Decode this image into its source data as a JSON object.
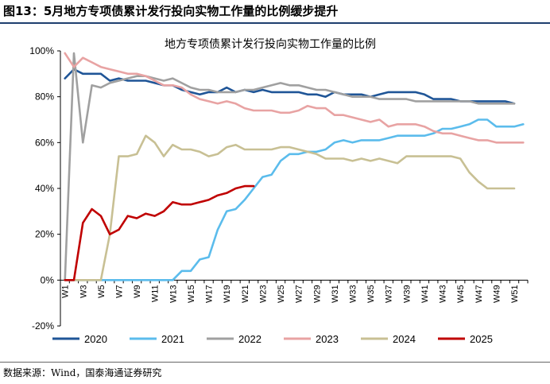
{
  "figure": {
    "title": "图13：5月地方专项债累计发行投向实物工作量的比例缓步提升",
    "source": "数据来源：Wind，国泰海通证券研究"
  },
  "chart_data": {
    "type": "line",
    "title": "地方专项债累计发行投向实物工作量的比例",
    "xlabel": "",
    "ylabel": "",
    "ylim": [
      -20,
      100
    ],
    "yticks": [
      "100%",
      "80%",
      "60%",
      "40%",
      "20%",
      "0%",
      "-20%"
    ],
    "ytick_values": [
      100,
      80,
      60,
      40,
      20,
      0,
      -20
    ],
    "x_categories": [
      "W1",
      "W2",
      "W3",
      "W4",
      "W5",
      "W6",
      "W7",
      "W8",
      "W9",
      "W10",
      "W11",
      "W12",
      "W13",
      "W14",
      "W15",
      "W16",
      "W17",
      "W18",
      "W19",
      "W20",
      "W21",
      "W22",
      "W23",
      "W24",
      "W25",
      "W26",
      "W27",
      "W28",
      "W29",
      "W30",
      "W31",
      "W32",
      "W33",
      "W34",
      "W35",
      "W36",
      "W37",
      "W38",
      "W39",
      "W40",
      "W41",
      "W42",
      "W43",
      "W44",
      "W45",
      "W46",
      "W47",
      "W48",
      "W49",
      "W50",
      "W51",
      "W52"
    ],
    "x_tick_labels": [
      "W1",
      "W3",
      "W5",
      "W7",
      "W9",
      "W11",
      "W13",
      "W15",
      "W17",
      "W19",
      "W21",
      "W23",
      "W25",
      "W27",
      "W29",
      "W31",
      "W33",
      "W35",
      "W37",
      "W39",
      "W41",
      "W43",
      "W45",
      "W47",
      "W49",
      "W51"
    ],
    "grid": false,
    "legend_position": "bottom",
    "series": [
      {
        "name": "2020",
        "color": "#1f5597",
        "values": [
          88,
          92,
          90,
          90,
          90,
          87,
          88,
          87,
          87,
          87,
          86,
          85,
          85,
          83,
          82,
          81,
          82,
          82,
          84,
          82,
          83,
          82,
          83,
          82,
          82,
          82,
          82,
          81,
          81,
          80,
          82,
          81,
          81,
          81,
          80,
          81,
          82,
          82,
          82,
          82,
          81,
          79,
          79,
          79,
          78,
          78,
          78,
          78,
          78,
          78,
          77
        ]
      },
      {
        "name": "2021",
        "color": "#5bbcec",
        "values": [
          0,
          0,
          0,
          0,
          0,
          0,
          0,
          0,
          0,
          0,
          0,
          0,
          0,
          4,
          4,
          9,
          10,
          22,
          30,
          31,
          35,
          40,
          45,
          46,
          52,
          55,
          55,
          56,
          56,
          57,
          60,
          61,
          60,
          61,
          61,
          61,
          62,
          63,
          63,
          63,
          63,
          64,
          66,
          66,
          67,
          68,
          70,
          70,
          67,
          67,
          67,
          68
        ]
      },
      {
        "name": "2022",
        "color": "#a0a0a0",
        "values": [
          0,
          99,
          60,
          85,
          84,
          86,
          87,
          88,
          89,
          89,
          88,
          87,
          88,
          86,
          84,
          83,
          83,
          82,
          82,
          82,
          83,
          83,
          84,
          85,
          86,
          85,
          85,
          84,
          83,
          83,
          82,
          81,
          80,
          80,
          80,
          79,
          79,
          79,
          79,
          78,
          78,
          78,
          78,
          78,
          78,
          78,
          77,
          77,
          77,
          77,
          77
        ]
      },
      {
        "name": "2023",
        "color": "#e8a3a3",
        "values": [
          99,
          93,
          97,
          95,
          93,
          92,
          91,
          90,
          90,
          89,
          87,
          85,
          85,
          84,
          81,
          79,
          78,
          77,
          78,
          77,
          75,
          74,
          74,
          74,
          73,
          73,
          74,
          76,
          75,
          75,
          72,
          72,
          71,
          70,
          69,
          70,
          67,
          68,
          68,
          68,
          67,
          65,
          64,
          64,
          63,
          62,
          61,
          61,
          60,
          60,
          60,
          60
        ]
      },
      {
        "name": "2024",
        "color": "#c8c094",
        "values": [
          0,
          0,
          0,
          0,
          0,
          20,
          54,
          54,
          55,
          63,
          60,
          54,
          59,
          57,
          57,
          56,
          54,
          55,
          58,
          59,
          57,
          57,
          57,
          57,
          58,
          58,
          57,
          56,
          55,
          53,
          53,
          53,
          52,
          53,
          52,
          53,
          52,
          51,
          54,
          54,
          54,
          54,
          54,
          54,
          53,
          47,
          43,
          40,
          40,
          40,
          40
        ]
      },
      {
        "name": "2025",
        "color": "#c00000",
        "values": [
          0,
          0,
          25,
          31,
          28,
          20,
          22,
          28,
          27,
          29,
          28,
          30,
          34,
          33,
          33,
          34,
          35,
          37,
          38,
          40,
          41,
          41
        ]
      }
    ]
  }
}
